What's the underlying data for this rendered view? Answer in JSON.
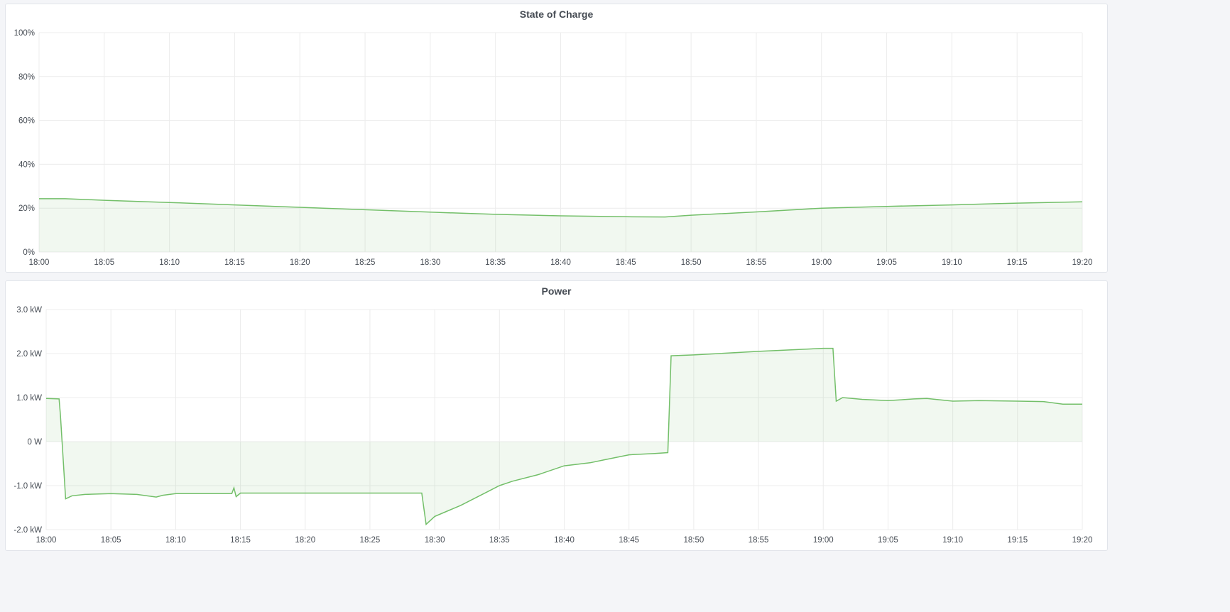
{
  "chart_data": [
    {
      "type": "area",
      "title": "State of Charge",
      "xlabel": "",
      "ylabel": "",
      "x_ticks": [
        "18:00",
        "18:05",
        "18:10",
        "18:15",
        "18:20",
        "18:25",
        "18:30",
        "18:35",
        "18:40",
        "18:45",
        "18:50",
        "18:55",
        "19:00",
        "19:05",
        "19:10",
        "19:15",
        "19:20"
      ],
      "y_ticks": [
        "0%",
        "20%",
        "40%",
        "60%",
        "80%",
        "100%"
      ],
      "ylim": [
        0,
        100
      ],
      "xlim": [
        "18:00:00",
        "19:20:00"
      ],
      "grid": true,
      "color": "#73BF69",
      "series": [
        {
          "x": [
            "18:00:00",
            "18:02:00",
            "18:05:00",
            "18:10:00",
            "18:15:00",
            "18:20:00",
            "18:25:00",
            "18:30:00",
            "18:35:00",
            "18:40:00",
            "18:45:00",
            "18:48:00",
            "18:50:00",
            "18:55:00",
            "19:00:00",
            "19:05:00",
            "19:10:00",
            "19:15:00",
            "19:20:00"
          ],
          "y": [
            24.3,
            24.3,
            23.6,
            22.6,
            21.5,
            20.4,
            19.3,
            18.2,
            17.2,
            16.5,
            16.1,
            16.0,
            16.8,
            18.3,
            20.0,
            20.8,
            21.5,
            22.3,
            22.9
          ]
        }
      ]
    },
    {
      "type": "area",
      "title": "Power",
      "xlabel": "",
      "ylabel": "",
      "x_ticks": [
        "18:00",
        "18:05",
        "18:10",
        "18:15",
        "18:20",
        "18:25",
        "18:30",
        "18:35",
        "18:40",
        "18:45",
        "18:50",
        "18:55",
        "19:00",
        "19:05",
        "19:10",
        "19:15",
        "19:20"
      ],
      "y_ticks": [
        "-2.0 kW",
        "-1.0 kW",
        "0 W",
        "1.0 kW",
        "2.0 kW",
        "3.0 kW"
      ],
      "ylim": [
        -2.0,
        3.0
      ],
      "y_unit": "kW",
      "xlim": [
        "18:00:00",
        "19:20:00"
      ],
      "grid": true,
      "color": "#73BF69",
      "series": [
        {
          "x": [
            "18:00:00",
            "18:01:00",
            "18:01:06",
            "18:01:30",
            "18:02:00",
            "18:03:00",
            "18:05:00",
            "18:07:00",
            "18:08:30",
            "18:09:00",
            "18:10:00",
            "18:12:00",
            "18:14:20",
            "18:14:30",
            "18:14:40",
            "18:15:00",
            "18:17:00",
            "18:20:00",
            "18:25:00",
            "18:29:00",
            "18:29:20",
            "18:30:00",
            "18:32:00",
            "18:34:00",
            "18:35:00",
            "18:36:00",
            "18:38:00",
            "18:40:00",
            "18:42:00",
            "18:43:00",
            "18:45:00",
            "18:47:00",
            "18:48:00",
            "18:48:15",
            "18:50:00",
            "18:55:00",
            "19:00:00",
            "19:00:45",
            "19:01:00",
            "19:01:30",
            "19:03:00",
            "19:05:00",
            "19:07:00",
            "19:08:00",
            "19:10:00",
            "19:12:00",
            "19:15:00",
            "19:17:00",
            "19:18:30",
            "19:20:00"
          ],
          "y": [
            0.98,
            0.97,
            0.6,
            -1.3,
            -1.23,
            -1.2,
            -1.18,
            -1.2,
            -1.26,
            -1.22,
            -1.18,
            -1.18,
            -1.18,
            -1.05,
            -1.25,
            -1.17,
            -1.17,
            -1.17,
            -1.17,
            -1.17,
            -1.88,
            -1.7,
            -1.45,
            -1.15,
            -1.0,
            -0.9,
            -0.75,
            -0.55,
            -0.48,
            -0.42,
            -0.3,
            -0.27,
            -0.25,
            1.95,
            1.97,
            2.05,
            2.12,
            2.12,
            0.92,
            1.0,
            0.96,
            0.93,
            0.97,
            0.98,
            0.92,
            0.93,
            0.92,
            0.91,
            0.85,
            0.85
          ]
        }
      ]
    }
  ]
}
